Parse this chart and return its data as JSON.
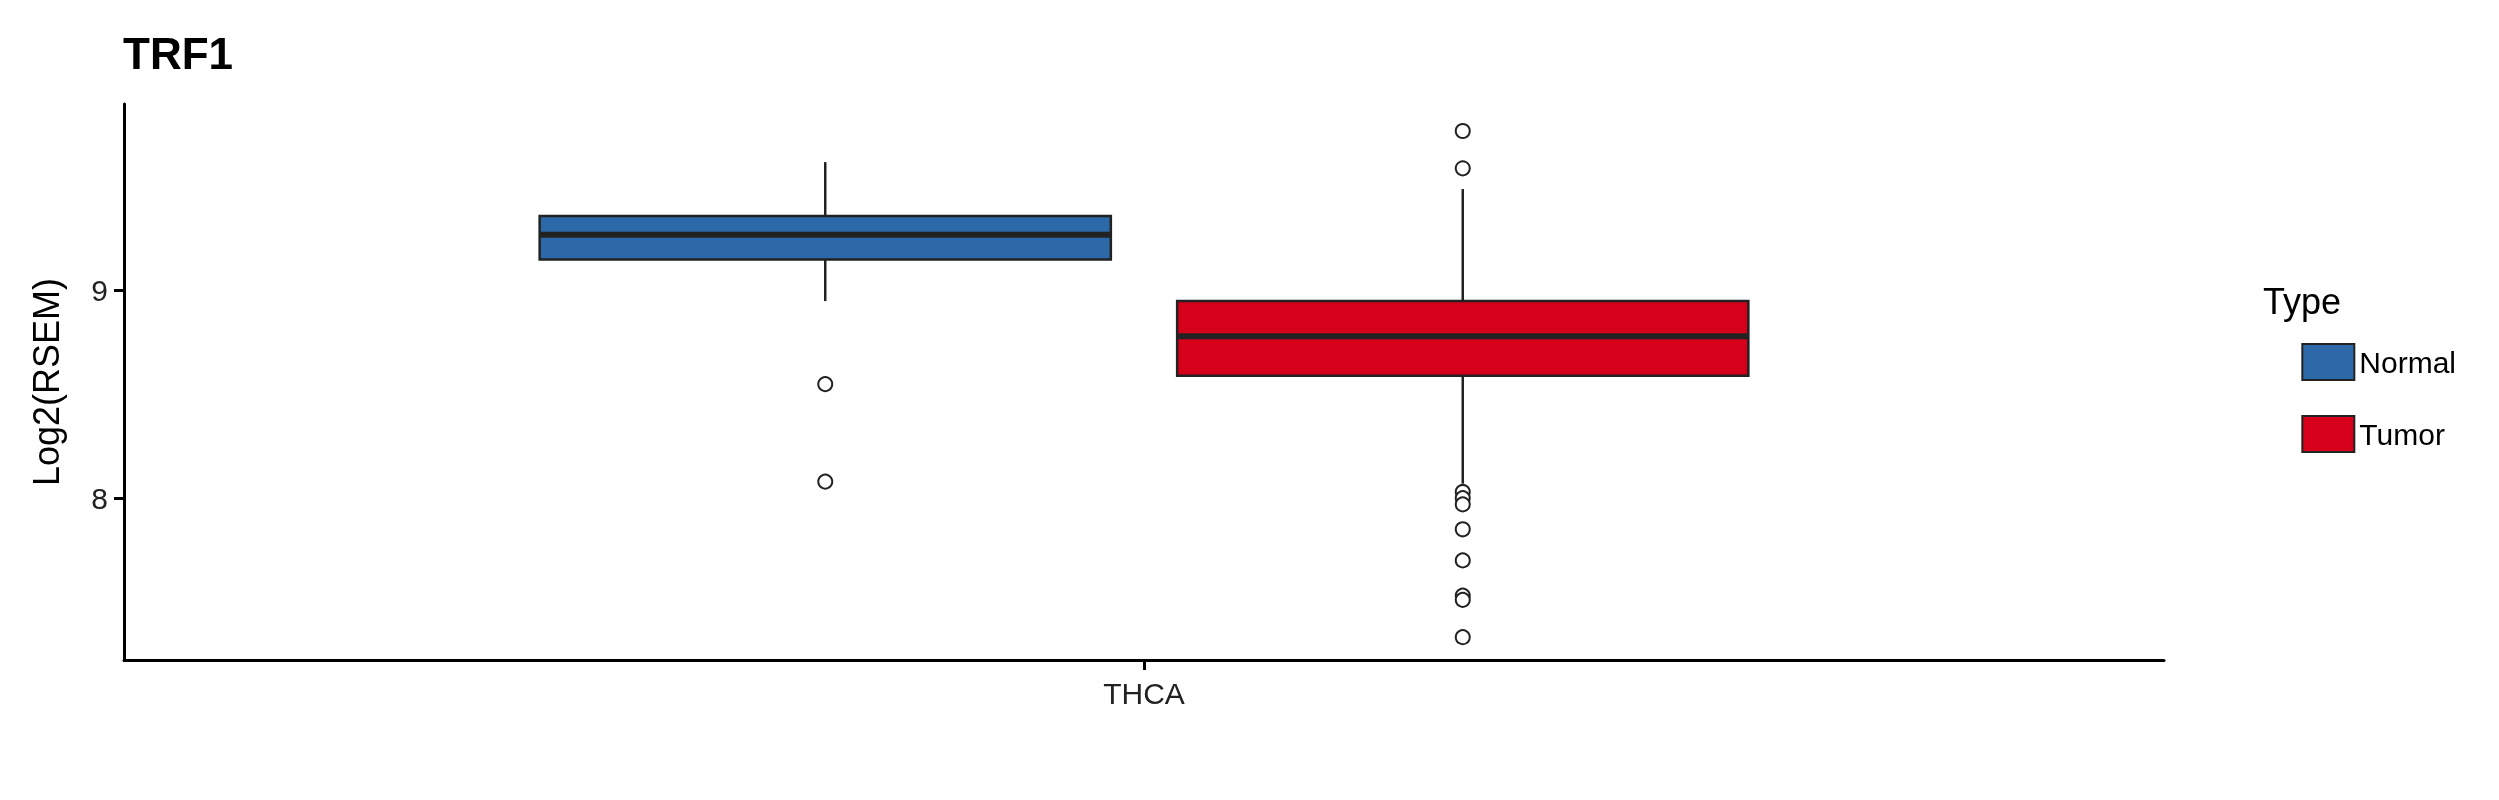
{
  "chart_data": {
    "type": "box",
    "title": "TRF1",
    "ylabel": "Log2(RSEM)",
    "legend_title": "Type",
    "categories": [
      "THCA"
    ],
    "series": [
      {
        "name": "Normal",
        "color": "#2d69a8",
        "boxes": [
          {
            "low": 8.95,
            "q1": 9.15,
            "median": 9.27,
            "q3": 9.36,
            "high": 9.62,
            "outliers": [
              8.55,
              8.08
            ]
          }
        ]
      },
      {
        "name": "Tumor",
        "color": "#d7001a",
        "boxes": [
          {
            "low": 8.07,
            "q1": 8.59,
            "median": 8.78,
            "q3": 8.95,
            "high": 9.49,
            "outliers": [
              9.77,
              9.59,
              8.03,
              8.0,
              7.97,
              7.85,
              7.7,
              7.53,
              7.51,
              7.33
            ]
          }
        ]
      }
    ],
    "ylim": [
      7.22,
      9.9
    ],
    "yticks": [
      8,
      9
    ],
    "grid": false,
    "legend": "right"
  }
}
